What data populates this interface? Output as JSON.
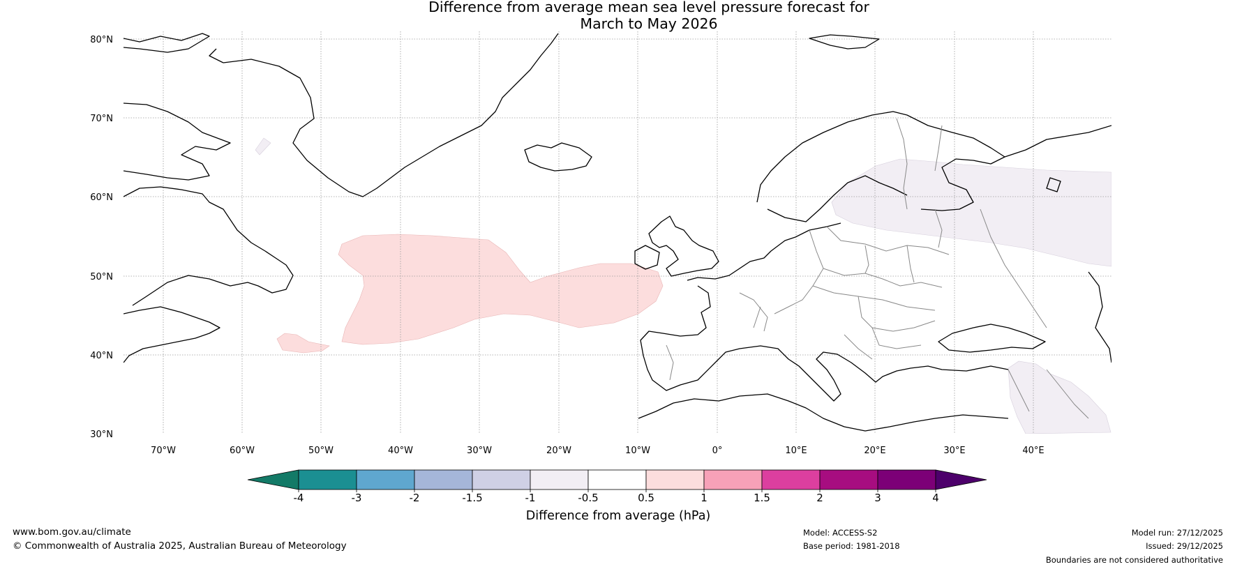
{
  "title": {
    "line1": "Difference from average mean sea level pressure forecast for",
    "line2": "March to May 2026"
  },
  "map": {
    "latitude_labels": [
      "80°N",
      "70°N",
      "60°N",
      "50°N",
      "40°N",
      "30°N"
    ],
    "longitude_labels": [
      "70°W",
      "60°W",
      "50°W",
      "40°W",
      "30°W",
      "20°W",
      "10°W",
      "0°",
      "10°E",
      "20°E",
      "30°E",
      "40°E"
    ],
    "region": "North Atlantic and Europe",
    "anomaly_areas": [
      {
        "name": "central North Atlantic",
        "category": "0.5 to 1 hPa"
      },
      {
        "name": "small area southeast of Newfoundland",
        "category": "0.5 to 1 hPa"
      },
      {
        "name": "Scandinavia to western Russia",
        "category": "-1 to -0.5 hPa"
      },
      {
        "name": "Eastern Mediterranean / Middle East",
        "category": "-1 to -0.5 hPa"
      },
      {
        "name": "Davis Strait",
        "category": "-1 to -0.5 hPa"
      }
    ]
  },
  "colorbar": {
    "ticks": [
      "-4",
      "-3",
      "-2",
      "-1.5",
      "-1",
      "-0.5",
      "0.5",
      "1",
      "1.5",
      "2",
      "3",
      "4"
    ],
    "colors": [
      "#1b8f92",
      "#5fa7cf",
      "#a5b6d9",
      "#cfd0e5",
      "#f2eef4",
      "#ffffff",
      "#fcdddd",
      "#f7a1b8",
      "#dc3f9f",
      "#a70d80",
      "#7c0077"
    ],
    "low_extend_color": "#137a67",
    "high_extend_color": "#4d006b",
    "label": "Difference from average (hPa)"
  },
  "colors": {
    "positive_anomaly": "#fcdddd",
    "negative_anomaly": "#f2eef4",
    "coastline": "#000000",
    "borders": "#888888"
  },
  "footer": {
    "website": "www.bom.gov.au/climate",
    "copyright": "© Commonwealth of Australia 2025, Australian Bureau of Meteorology",
    "model": "Model: ACCESS-S2",
    "base_period": "Base period: 1981-2018",
    "model_run": "Model run: 27/12/2025",
    "issued": "Issued: 29/12/2025",
    "disclaimer": "Boundaries are not considered authoritative"
  }
}
